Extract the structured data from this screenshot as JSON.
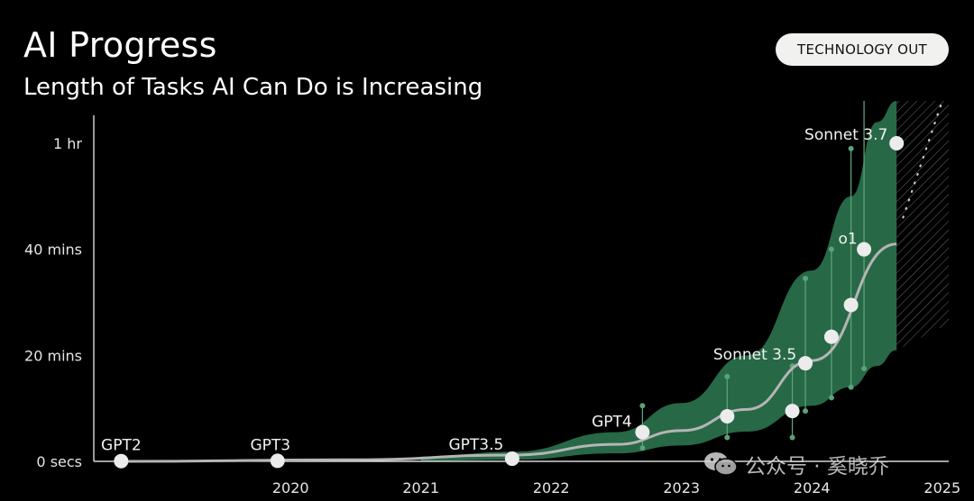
{
  "header": {
    "title": "AI Progress",
    "subtitle": "Length of Tasks AI Can Do is Increasing",
    "badge": "TECHNOLOGY OUT"
  },
  "watermark": {
    "text": "公众号 · 奚晓乔",
    "icon": "wechat-icon"
  },
  "colors": {
    "band": "#2f7f57",
    "band_line": "#5aa27a",
    "curve": "#b5b5b5",
    "point": "#ececec",
    "axis": "#ffffff"
  },
  "chart_data": {
    "type": "scatter",
    "title": "AI Progress",
    "subtitle": "Length of Tasks AI Can Do is Increasing",
    "xlabel": "",
    "ylabel": "",
    "xlim": [
      2019.17,
      2025.55
    ],
    "ylim": [
      0,
      62
    ],
    "x_ticks": [
      {
        "value": 2020,
        "label": "2020"
      },
      {
        "value": 2021,
        "label": "2021"
      },
      {
        "value": 2022,
        "label": "2022"
      },
      {
        "value": 2023,
        "label": "2023"
      },
      {
        "value": 2024,
        "label": "2024"
      },
      {
        "value": 2025,
        "label": "2025"
      }
    ],
    "y_ticks": [
      {
        "value": 0,
        "label": "0 secs"
      },
      {
        "value": 20,
        "label": "20 mins"
      },
      {
        "value": 40,
        "label": "40 mins"
      },
      {
        "value": 60,
        "label": "1 hr"
      }
    ],
    "points": [
      {
        "label": "GPT2",
        "x": 2019.2,
        "y": 0.05,
        "lo": null,
        "hi": null
      },
      {
        "label": "GPT3",
        "x": 2020.4,
        "y": 0.1,
        "lo": null,
        "hi": null
      },
      {
        "label": "GPT3.5",
        "x": 2022.2,
        "y": 0.5,
        "lo": null,
        "hi": null
      },
      {
        "label": "GPT4",
        "x": 2023.2,
        "y": 5.5,
        "lo": 2.5,
        "hi": 10.5
      },
      {
        "label": "",
        "x": 2023.85,
        "y": 8.5,
        "lo": 4.5,
        "hi": 16
      },
      {
        "label": "",
        "x": 2024.35,
        "y": 9.5,
        "lo": 4.5,
        "hi": 18
      },
      {
        "label": "Sonnet 3.5",
        "x": 2024.45,
        "y": 18.5,
        "lo": 9.5,
        "hi": 34.5
      },
      {
        "label": "",
        "x": 2024.65,
        "y": 23.5,
        "lo": 12,
        "hi": 40
      },
      {
        "label": "",
        "x": 2024.8,
        "y": 29.5,
        "lo": 14,
        "hi": 59
      },
      {
        "label": "o1",
        "x": 2024.9,
        "y": 40,
        "lo": 17.5,
        "hi": null
      },
      {
        "label": "Sonnet 3.7",
        "x": 2025.15,
        "y": 60,
        "lo": null,
        "hi": null
      }
    ],
    "trend": {
      "x": [
        2019.2,
        2021.0,
        2022.2,
        2023.0,
        2023.5,
        2024.0,
        2024.5,
        2025.15
      ],
      "y": [
        0,
        0.3,
        1.2,
        3.2,
        5.8,
        9.8,
        19,
        41
      ]
    },
    "band_upper": {
      "x": [
        2021.5,
        2022.2,
        2023.0,
        2023.5,
        2024.0,
        2024.5,
        2024.8,
        2025.0,
        2025.15
      ],
      "y": [
        0.9,
        1.8,
        5.5,
        11,
        20,
        36,
        50,
        64,
        70
      ]
    },
    "band_lower": {
      "x": [
        2021.5,
        2022.2,
        2023.0,
        2023.5,
        2024.0,
        2024.5,
        2024.8,
        2025.0,
        2025.15
      ],
      "y": [
        0.1,
        0.3,
        1.5,
        3,
        5.6,
        10.5,
        14,
        18,
        21
      ]
    },
    "projection": {
      "x": [
        2025.2,
        2025.5
      ],
      "y": [
        46,
        68
      ]
    },
    "grid": false,
    "legend": "none"
  }
}
